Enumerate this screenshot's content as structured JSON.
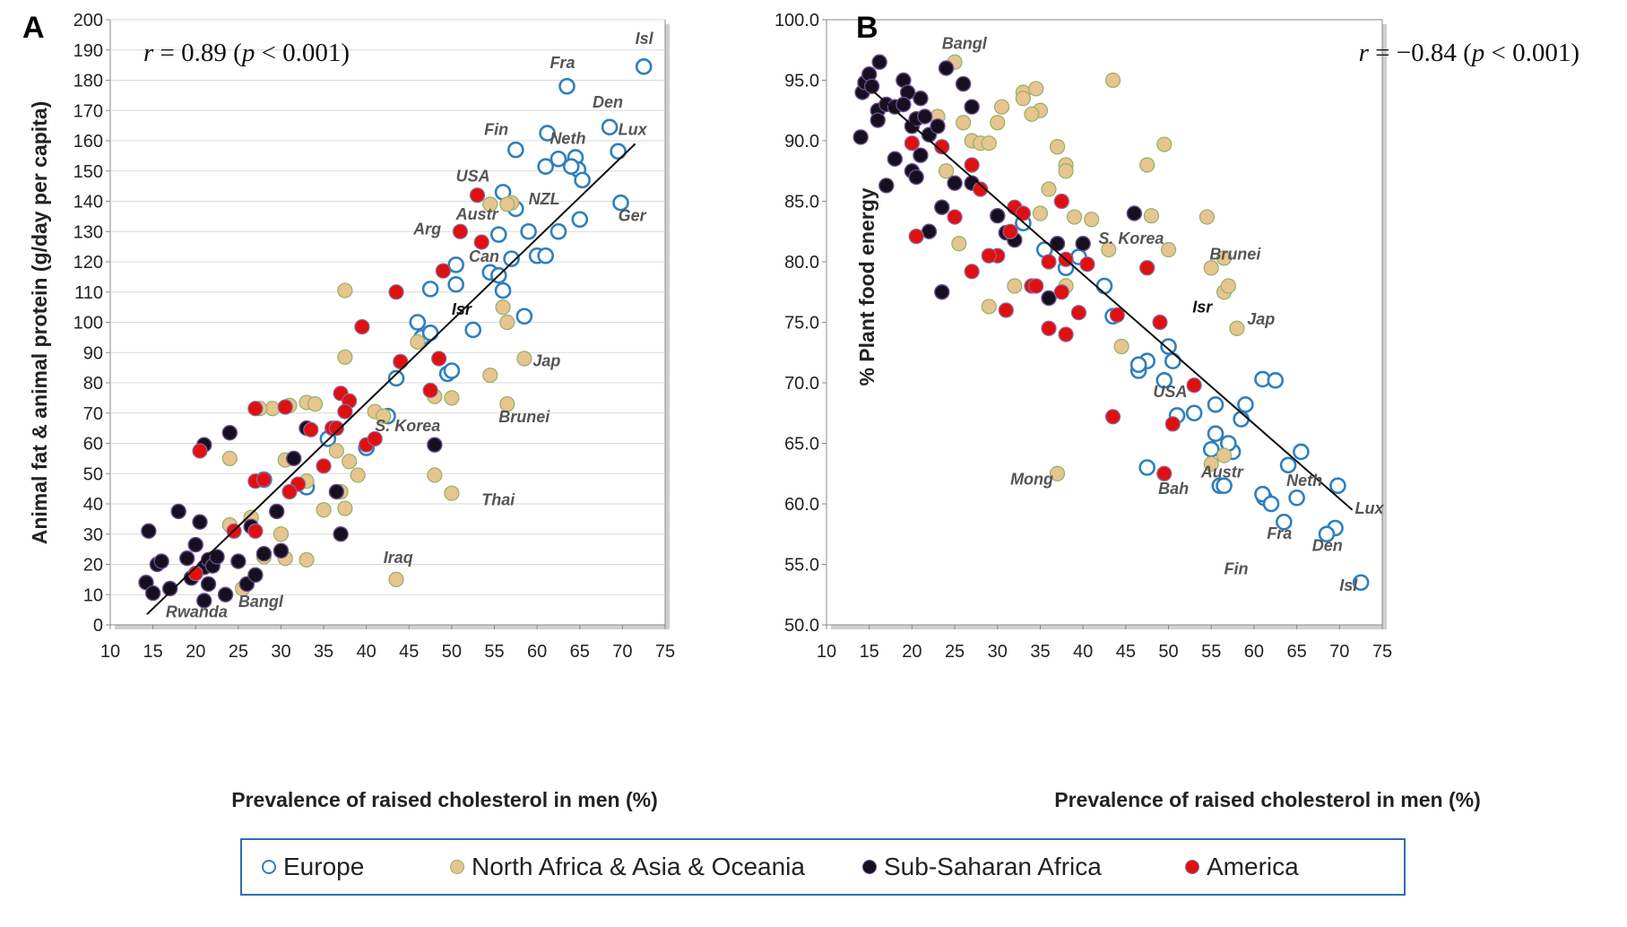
{
  "colors": {
    "europe_stroke": "#2e7fbf",
    "europe_fill": "#ffffff",
    "nafrica_fill": "#e8c48e",
    "nafrica_stroke": "#8fb26a",
    "ssa_fill": "#15101f",
    "ssa_stroke": "#6a4a8a",
    "america_fill": "#e01010",
    "america_stroke": "#8a6aa0",
    "grid": "#d9d9d9",
    "legend_border": "#2e6fb0"
  },
  "legend": {
    "europe": "Europe",
    "nafrica": "North Africa & Asia & Oceania",
    "ssa": "Sub-Saharan Africa",
    "america": "America"
  },
  "chart_data": [
    {
      "type": "scatter",
      "panel": "A",
      "title": "",
      "xlabel": "Prevalence of raised cholesterol in men (%)",
      "ylabel": "Animal fat & animal protein (g/day per capita)",
      "xlim": [
        10,
        75
      ],
      "ylim": [
        0,
        200
      ],
      "x_ticks": [
        "10",
        "15",
        "20",
        "25",
        "30",
        "35",
        "40",
        "45",
        "50",
        "55",
        "60",
        "65",
        "70",
        "75"
      ],
      "y_ticks": [
        "0",
        "10",
        "20",
        "30",
        "40",
        "50",
        "60",
        "70",
        "80",
        "90",
        "100",
        "110",
        "120",
        "130",
        "140",
        "150",
        "160",
        "170",
        "180",
        "190",
        "200"
      ],
      "grid": "horizontal",
      "annotation": {
        "r_label": "r",
        "r_text": " = 0.89 (",
        "p_label": "p",
        "p_text": " < 0.001)"
      },
      "trendline": [
        [
          14.3,
          3.5
        ],
        [
          71.5,
          159
        ]
      ],
      "series": [
        {
          "name": "Europe",
          "x": [
            72.5,
            63.5,
            68.5,
            69.5,
            61.2,
            57.5,
            62.5,
            64.5,
            64.8,
            65.3,
            61,
            64,
            56,
            57.5,
            55.5,
            59,
            62.5,
            65,
            69.8,
            60,
            61,
            57,
            50.5,
            54.5,
            55.5,
            56,
            50.5,
            47.5,
            46,
            46.5,
            47.5,
            49.5,
            50,
            52.5,
            58.5,
            43.5,
            42.5,
            40,
            35.5,
            33,
            28
          ],
          "y": [
            184.5,
            178,
            164.5,
            156.5,
            162.5,
            157,
            154,
            154.5,
            150.5,
            147,
            151.5,
            151.5,
            143,
            137.5,
            129,
            130,
            130,
            134,
            139.5,
            122,
            122,
            121,
            119,
            116.5,
            115.5,
            110.5,
            112.5,
            111,
            100,
            95,
            96.5,
            83,
            84,
            97.5,
            102,
            81.5,
            69,
            58.5,
            61.5,
            45.5,
            48
          ]
        },
        {
          "name": "North Africa & Asia & Oceania",
          "x": [
            54.5,
            57,
            56.5,
            56,
            56.5,
            58.5,
            37.5,
            37.5,
            46,
            48,
            50,
            56.5,
            54.5,
            48,
            50,
            41,
            42,
            36.5,
            38,
            39,
            33,
            34,
            31,
            29,
            27.5,
            30.5,
            33,
            35,
            37,
            37.5,
            24,
            24,
            26.5,
            28,
            30,
            30.5,
            33,
            25.5,
            22,
            43.5
          ],
          "y": [
            139,
            139.5,
            139,
            105,
            100,
            88,
            110.5,
            88.5,
            93.5,
            75.5,
            75,
            73,
            82.5,
            49.5,
            43.5,
            70.5,
            69,
            57.5,
            54,
            49.5,
            73.5,
            73,
            72.5,
            71.5,
            71.5,
            54.5,
            47.5,
            38,
            44,
            38.5,
            55,
            33,
            35.5,
            22.5,
            30,
            22,
            21.5,
            12,
            22,
            15
          ]
        },
        {
          "name": "Sub-Saharan Africa",
          "x": [
            14.5,
            14.2,
            15,
            15.5,
            16,
            17,
            18,
            19,
            19.5,
            20,
            20.5,
            21,
            21,
            21.5,
            22,
            22.5,
            21,
            24,
            23.5,
            21.5,
            25,
            26,
            26.5,
            27,
            28,
            29.5,
            30,
            31.5,
            33,
            36.5,
            37,
            48
          ],
          "y": [
            31,
            14,
            10.5,
            20,
            21,
            12,
            37.5,
            22,
            15.5,
            26.5,
            34,
            19,
            8,
            21.5,
            19.5,
            22.5,
            59.5,
            63.5,
            10,
            13.5,
            21,
            13.5,
            32.5,
            16.5,
            23.5,
            37.5,
            24.5,
            55,
            65,
            44,
            30,
            59.5
          ]
        },
        {
          "name": "America",
          "x": [
            53,
            51,
            53.5,
            49,
            43.5,
            44,
            48.5,
            47.5,
            39.5,
            37,
            38,
            37.5,
            36,
            36.5,
            35,
            33.5,
            32,
            31,
            30.5,
            27,
            27,
            28,
            27,
            40,
            41,
            20.5,
            20,
            24.5
          ],
          "y": [
            142,
            130,
            126.5,
            117,
            110,
            87,
            88,
            77.5,
            98.5,
            76.5,
            74,
            70.5,
            65,
            65,
            52.5,
            64.5,
            46.5,
            44,
            72,
            71.5,
            47.5,
            48,
            31,
            59.5,
            61.5,
            57.5,
            17,
            31
          ]
        }
      ],
      "labels": [
        {
          "text": "Isl",
          "x": 71.5,
          "y": 192
        },
        {
          "text": "Fra",
          "x": 61.5,
          "y": 184
        },
        {
          "text": "Den",
          "x": 66.5,
          "y": 171
        },
        {
          "text": "Lux",
          "x": 69.5,
          "y": 162
        },
        {
          "text": "Fin",
          "x": 53.8,
          "y": 162
        },
        {
          "text": "Neth",
          "x": 61.5,
          "y": 159
        },
        {
          "text": "USA",
          "x": 50.5,
          "y": 146.5
        },
        {
          "text": "NZL",
          "x": 59,
          "y": 139
        },
        {
          "text": "Austr",
          "x": 50.5,
          "y": 134
        },
        {
          "text": "Ger",
          "x": 69.5,
          "y": 133.5
        },
        {
          "text": "Arg",
          "x": 45.5,
          "y": 129
        },
        {
          "text": "Can",
          "x": 52,
          "y": 120
        },
        {
          "text": "Isr",
          "x": 50,
          "y": 102.5,
          "dark": true
        },
        {
          "text": "Jap",
          "x": 59.5,
          "y": 85.5
        },
        {
          "text": "S. Korea",
          "x": 41,
          "y": 64
        },
        {
          "text": "Brunei",
          "x": 55.5,
          "y": 67
        },
        {
          "text": "Thai",
          "x": 53.5,
          "y": 39.5
        },
        {
          "text": "Iraq",
          "x": 42,
          "y": 20.5
        },
        {
          "text": "Rwanda",
          "x": 16.5,
          "y": 2.5
        },
        {
          "text": "Bangl",
          "x": 25,
          "y": 6
        }
      ]
    },
    {
      "type": "scatter",
      "panel": "B",
      "title": "",
      "xlabel": "Prevalence of raised cholesterol in men (%)",
      "ylabel": "% Plant food energy",
      "xlim": [
        10,
        75
      ],
      "ylim": [
        50,
        100
      ],
      "x_ticks": [
        "10",
        "15",
        "20",
        "25",
        "30",
        "35",
        "40",
        "45",
        "50",
        "55",
        "60",
        "65",
        "70",
        "75"
      ],
      "y_ticks": [
        "50.0",
        "55.0",
        "60.0",
        "65.0",
        "70.0",
        "75.0",
        "80.0",
        "85.0",
        "90.0",
        "95.0",
        "100.0"
      ],
      "grid": "none",
      "annotation": {
        "r_label": "r",
        "r_text": " = −0.84 (",
        "p_label": "p",
        "p_text": " < 0.001)"
      },
      "trendline": [
        [
          14.8,
          94.5
        ],
        [
          71.5,
          59.5
        ]
      ],
      "series": [
        {
          "name": "Europe",
          "x": [
            72.5,
            69.5,
            69.8,
            68.5,
            63.5,
            65,
            61.2,
            61,
            62,
            64,
            65.5,
            58.5,
            59,
            61,
            62.5,
            57.5,
            55,
            56,
            57,
            55.5,
            56.5,
            53,
            51,
            50.5,
            50,
            47.5,
            46.5,
            46.5,
            49.5,
            43.5,
            42.5,
            39.5,
            38,
            33,
            35.5,
            47.5,
            55.5
          ],
          "y": [
            53.5,
            58,
            61.5,
            57.5,
            58.5,
            60.5,
            60.5,
            60.8,
            60,
            63.2,
            64.3,
            67,
            68.2,
            70.3,
            70.2,
            64.3,
            64.5,
            61.5,
            65,
            65.8,
            61.5,
            67.5,
            67.3,
            71.8,
            73,
            71.8,
            71,
            71.5,
            70.2,
            75.5,
            78,
            80.4,
            79.5,
            83.2,
            81,
            63,
            68.2
          ]
        },
        {
          "name": "North Africa & Asia & Oceania",
          "x": [
            25,
            33,
            34.5,
            35,
            37,
            38,
            38,
            43.5,
            49.5,
            47.5,
            48,
            50,
            54.5,
            55,
            56.5,
            56.5,
            57,
            58,
            24,
            26,
            27,
            28,
            29,
            30,
            30.5,
            33,
            34,
            36,
            39,
            41,
            43,
            44.5,
            47.5,
            55,
            56.5,
            36,
            38,
            37,
            35,
            32,
            25.5,
            29,
            37,
            23
          ],
          "y": [
            96.5,
            94,
            94.3,
            92.5,
            89.5,
            88,
            87.5,
            95,
            89.7,
            88,
            83.8,
            81,
            83.7,
            79.5,
            80.3,
            77.5,
            78,
            74.5,
            87.5,
            91.5,
            90,
            89.8,
            89.8,
            91.5,
            92.8,
            93.5,
            92.2,
            86,
            83.7,
            83.5,
            81,
            73,
            79.5,
            63.3,
            64,
            77,
            78,
            89.5,
            84,
            78,
            81.5,
            76.3,
            62.5,
            92
          ]
        },
        {
          "name": "Sub-Saharan Africa",
          "x": [
            14.2,
            14.5,
            15,
            15.3,
            16.2,
            16,
            17,
            18,
            19,
            19.5,
            20,
            20.5,
            21,
            21.5,
            22,
            23,
            24,
            26,
            27,
            25,
            23.5,
            17,
            18,
            19,
            20,
            21,
            22,
            23.5,
            27,
            30,
            31,
            32,
            36,
            37,
            40,
            46,
            20.5,
            14,
            16
          ],
          "y": [
            94,
            94.8,
            95.5,
            94.5,
            96.5,
            92.5,
            93,
            92.8,
            95,
            94,
            91.2,
            91.8,
            93.5,
            92,
            90.5,
            91.2,
            96,
            94.7,
            92.8,
            86.5,
            77.5,
            86.3,
            88.5,
            93,
            87.5,
            88.8,
            82.5,
            84.5,
            86.5,
            83.8,
            82.4,
            81.8,
            77,
            81.5,
            81.5,
            84,
            87,
            90.3,
            91.7
          ]
        },
        {
          "name": "America",
          "x": [
            20,
            23.5,
            27,
            25,
            37.5,
            32,
            33,
            36,
            38,
            40.5,
            43.5,
            47.5,
            49,
            53,
            50.5,
            49.5,
            44,
            39.5,
            38,
            36,
            34,
            31,
            31.5,
            30,
            29,
            27,
            28,
            20.5,
            34.5,
            37.5
          ],
          "y": [
            89.8,
            89.5,
            88,
            83.7,
            85,
            84.5,
            84,
            80,
            80.2,
            79.8,
            67.2,
            79.5,
            75,
            69.8,
            66.6,
            62.5,
            75.6,
            75.8,
            74,
            74.5,
            78,
            76,
            82.5,
            80.5,
            80.5,
            79.2,
            86,
            82.1,
            78,
            77.5
          ]
        }
      ],
      "labels": [
        {
          "text": "Bangl",
          "x": 23.5,
          "y": 97.6
        },
        {
          "text": "S. Korea",
          "x": 41.8,
          "y": 81.5
        },
        {
          "text": "Brunei",
          "x": 54.8,
          "y": 80.2
        },
        {
          "text": "Isr",
          "x": 52.8,
          "y": 75.8,
          "dark": true
        },
        {
          "text": "Jap",
          "x": 59.2,
          "y": 74.8
        },
        {
          "text": "USA",
          "x": 48.2,
          "y": 68.8
        },
        {
          "text": "Mong",
          "x": 31.5,
          "y": 61.6
        },
        {
          "text": "Bah",
          "x": 48.8,
          "y": 60.8
        },
        {
          "text": "Austr",
          "x": 53.8,
          "y": 62.2
        },
        {
          "text": "Neth",
          "x": 63.8,
          "y": 61.5
        },
        {
          "text": "Lux",
          "x": 71.8,
          "y": 59.2
        },
        {
          "text": "Fra",
          "x": 61.5,
          "y": 57.1
        },
        {
          "text": "Den",
          "x": 66.8,
          "y": 56.1
        },
        {
          "text": "Fin",
          "x": 56.5,
          "y": 54.2
        },
        {
          "text": "Isl",
          "x": 70,
          "y": 52.8
        }
      ]
    }
  ]
}
